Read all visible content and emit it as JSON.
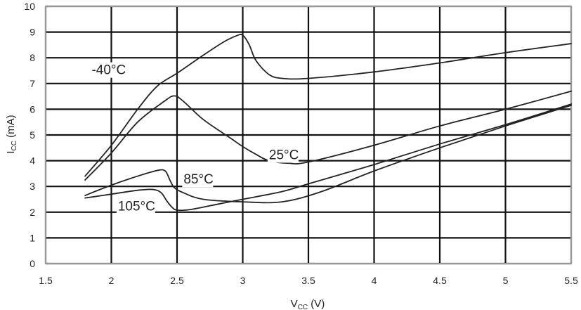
{
  "chart_data": {
    "type": "line",
    "title": "",
    "xlabel": {
      "main": "V",
      "sub": "CC",
      "unit": " (V)"
    },
    "ylabel": {
      "main": "I",
      "sub": "CC",
      "unit": " (mA)"
    },
    "xlim": [
      1.5,
      5.5
    ],
    "ylim": [
      0,
      10
    ],
    "xticks": [
      "1.5",
      "2",
      "2.5",
      "3",
      "3.5",
      "4",
      "4.5",
      "5",
      "5.5"
    ],
    "yticks": [
      "0",
      "1",
      "2",
      "3",
      "4",
      "5",
      "6",
      "7",
      "8",
      "9",
      "10"
    ],
    "grid": true,
    "series": [
      {
        "name": "-40°C",
        "x": [
          1.8,
          2.0,
          2.2,
          2.35,
          2.5,
          2.7,
          2.85,
          2.95,
          3.0,
          3.05,
          3.1,
          3.2,
          3.3,
          3.5,
          4.0,
          4.5,
          5.0,
          5.5
        ],
        "y": [
          3.4,
          4.6,
          6.0,
          6.9,
          7.4,
          8.1,
          8.6,
          8.85,
          8.88,
          8.5,
          7.9,
          7.35,
          7.2,
          7.2,
          7.45,
          7.8,
          8.2,
          8.55
        ]
      },
      {
        "name": "25°C",
        "x": [
          1.8,
          2.0,
          2.2,
          2.4,
          2.48,
          2.55,
          2.7,
          2.9,
          3.0,
          3.1,
          3.2,
          3.35,
          3.5,
          4.0,
          4.5,
          5.0,
          5.5
        ],
        "y": [
          3.25,
          4.3,
          5.5,
          6.3,
          6.52,
          6.3,
          5.6,
          4.9,
          4.55,
          4.25,
          4.0,
          3.9,
          3.95,
          4.6,
          5.35,
          6.0,
          6.7
        ]
      },
      {
        "name": "85°C",
        "x": [
          1.8,
          2.0,
          2.2,
          2.35,
          2.41,
          2.45,
          2.48,
          2.55,
          2.7,
          3.0,
          3.3,
          3.6,
          4.0,
          4.5,
          5.0,
          5.5
        ],
        "y": [
          2.65,
          3.05,
          3.4,
          3.62,
          3.6,
          3.2,
          2.95,
          2.75,
          2.5,
          2.4,
          2.4,
          2.8,
          3.6,
          4.5,
          5.35,
          6.15
        ]
      },
      {
        "name": "105°C",
        "x": [
          1.8,
          2.0,
          2.2,
          2.32,
          2.38,
          2.42,
          2.46,
          2.5,
          2.6,
          2.8,
          3.0,
          3.3,
          3.5,
          4.0,
          4.5,
          5.0,
          5.5
        ],
        "y": [
          2.55,
          2.7,
          2.85,
          2.88,
          2.75,
          2.45,
          2.2,
          2.08,
          2.1,
          2.3,
          2.5,
          2.8,
          3.1,
          3.85,
          4.65,
          5.4,
          6.2
        ]
      }
    ],
    "annotations": [
      {
        "text": "-40°C",
        "x": 1.85,
        "y": 7.55
      },
      {
        "text": "25°C",
        "x": 3.2,
        "y": 4.25
      },
      {
        "text": "85°C",
        "x": 2.55,
        "y": 3.3
      },
      {
        "text": "105°C",
        "x": 2.05,
        "y": 2.25
      }
    ],
    "colors": {
      "line": "#222222",
      "grid": "#111111",
      "frame": "#999999",
      "background": "#ffffff"
    }
  }
}
